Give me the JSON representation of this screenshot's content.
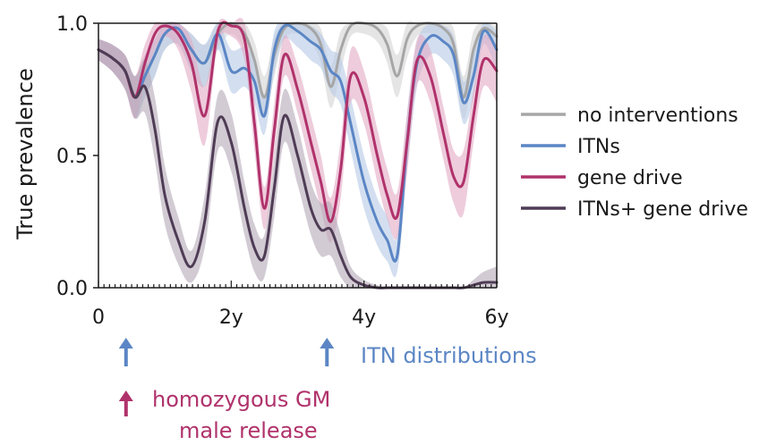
{
  "chart_data": {
    "type": "line",
    "title": "",
    "xlabel": "",
    "ylabel": "True prevalence",
    "xlim": [
      0,
      6
    ],
    "ylim": [
      0,
      1
    ],
    "x_ticks": [
      0,
      2,
      4,
      6
    ],
    "x_tick_labels": [
      "0",
      "2y",
      "4y",
      "6y"
    ],
    "y_ticks": [
      0,
      0.5,
      1
    ],
    "y_tick_labels": [
      "0.0",
      "0.5",
      "1.0"
    ],
    "grid": false,
    "legend_position": "right",
    "series": [
      {
        "name": "no interventions",
        "color": "#a6a6a6",
        "band_color": "#d4d4d4",
        "x": [
          0,
          0.2,
          0.4,
          0.55,
          0.7,
          0.85,
          1.0,
          1.2,
          1.4,
          1.6,
          1.8,
          2.0,
          2.2,
          2.35,
          2.5,
          2.65,
          2.8,
          3.0,
          3.2,
          3.35,
          3.5,
          3.65,
          3.8,
          4.0,
          4.2,
          4.35,
          4.5,
          4.65,
          4.8,
          5.0,
          5.2,
          5.35,
          5.5,
          5.65,
          5.8,
          6.0
        ],
        "values": [
          0.9,
          0.87,
          0.82,
          0.72,
          0.8,
          0.88,
          0.96,
          0.98,
          0.9,
          0.85,
          0.96,
          1.0,
          0.96,
          0.86,
          0.72,
          0.88,
          0.98,
          1.0,
          0.98,
          0.92,
          0.76,
          0.9,
          0.99,
          1.0,
          0.98,
          0.92,
          0.8,
          0.94,
          0.99,
          1.0,
          0.98,
          0.92,
          0.72,
          0.9,
          0.98,
          0.95
        ],
        "lower": [
          0.86,
          0.82,
          0.75,
          0.64,
          0.72,
          0.8,
          0.9,
          0.92,
          0.82,
          0.76,
          0.9,
          0.96,
          0.9,
          0.78,
          0.64,
          0.8,
          0.94,
          0.96,
          0.93,
          0.85,
          0.68,
          0.82,
          0.95,
          0.96,
          0.93,
          0.85,
          0.72,
          0.87,
          0.95,
          0.96,
          0.93,
          0.85,
          0.64,
          0.82,
          0.94,
          0.9
        ],
        "upper": [
          0.94,
          0.92,
          0.88,
          0.8,
          0.88,
          0.94,
          1.0,
          1.0,
          0.96,
          0.92,
          1.0,
          1.0,
          1.0,
          0.93,
          0.8,
          0.95,
          1.0,
          1.0,
          1.0,
          0.98,
          0.84,
          0.97,
          1.0,
          1.0,
          1.0,
          0.98,
          0.88,
          1.0,
          1.0,
          1.0,
          1.0,
          0.98,
          0.8,
          0.97,
          1.0,
          0.99
        ]
      },
      {
        "name": "ITNs",
        "color": "#5b86c5",
        "band_color": "#b5c9e6",
        "x": [
          0,
          0.2,
          0.4,
          0.55,
          0.7,
          0.85,
          1.0,
          1.2,
          1.4,
          1.6,
          1.8,
          2.0,
          2.2,
          2.35,
          2.5,
          2.65,
          2.8,
          3.0,
          3.2,
          3.35,
          3.5,
          3.65,
          3.8,
          4.0,
          4.2,
          4.35,
          4.5,
          4.65,
          4.8,
          5.0,
          5.2,
          5.35,
          5.5,
          5.65,
          5.8,
          6.0
        ],
        "values": [
          0.9,
          0.87,
          0.82,
          0.72,
          0.8,
          0.88,
          0.96,
          0.98,
          0.9,
          0.85,
          0.96,
          0.82,
          0.83,
          0.78,
          0.65,
          0.9,
          0.99,
          0.97,
          0.93,
          0.9,
          0.82,
          0.78,
          0.62,
          0.4,
          0.25,
          0.18,
          0.12,
          0.55,
          0.85,
          0.95,
          0.93,
          0.88,
          0.7,
          0.8,
          0.97,
          0.9
        ],
        "lower": [
          0.86,
          0.82,
          0.75,
          0.64,
          0.72,
          0.8,
          0.9,
          0.92,
          0.82,
          0.76,
          0.9,
          0.74,
          0.76,
          0.7,
          0.58,
          0.82,
          0.94,
          0.91,
          0.86,
          0.83,
          0.74,
          0.69,
          0.52,
          0.3,
          0.16,
          0.1,
          0.06,
          0.44,
          0.76,
          0.88,
          0.86,
          0.8,
          0.62,
          0.72,
          0.92,
          0.82
        ],
        "upper": [
          0.94,
          0.92,
          0.88,
          0.8,
          0.88,
          0.94,
          1.0,
          1.0,
          0.96,
          0.92,
          1.0,
          0.9,
          0.91,
          0.86,
          0.73,
          0.97,
          1.0,
          1.0,
          0.99,
          0.96,
          0.9,
          0.87,
          0.72,
          0.5,
          0.34,
          0.27,
          0.2,
          0.66,
          0.93,
          1.0,
          0.99,
          0.95,
          0.78,
          0.88,
          1.0,
          0.97
        ]
      },
      {
        "name": "gene drive",
        "color": "#b0326b",
        "band_color": "#e3aac4",
        "x": [
          0,
          0.2,
          0.4,
          0.55,
          0.7,
          0.85,
          1.0,
          1.2,
          1.4,
          1.6,
          1.8,
          2.0,
          2.2,
          2.35,
          2.5,
          2.65,
          2.8,
          3.0,
          3.2,
          3.35,
          3.5,
          3.65,
          3.8,
          4.0,
          4.2,
          4.35,
          4.5,
          4.65,
          4.8,
          5.0,
          5.2,
          5.35,
          5.5,
          5.65,
          5.8,
          6.0
        ],
        "values": [
          0.9,
          0.87,
          0.82,
          0.72,
          0.85,
          0.96,
          0.99,
          0.96,
          0.85,
          0.65,
          0.97,
          0.99,
          0.94,
          0.62,
          0.3,
          0.6,
          0.88,
          0.75,
          0.55,
          0.4,
          0.25,
          0.45,
          0.8,
          0.72,
          0.5,
          0.35,
          0.27,
          0.55,
          0.86,
          0.8,
          0.58,
          0.42,
          0.4,
          0.65,
          0.86,
          0.82
        ],
        "lower": [
          0.86,
          0.82,
          0.75,
          0.64,
          0.78,
          0.9,
          0.95,
          0.9,
          0.74,
          0.54,
          0.92,
          0.95,
          0.86,
          0.52,
          0.22,
          0.5,
          0.8,
          0.66,
          0.45,
          0.3,
          0.17,
          0.34,
          0.7,
          0.62,
          0.4,
          0.26,
          0.19,
          0.44,
          0.77,
          0.7,
          0.48,
          0.32,
          0.28,
          0.55,
          0.76,
          0.7
        ],
        "upper": [
          0.94,
          0.92,
          0.88,
          0.8,
          0.92,
          1.0,
          1.0,
          1.0,
          0.94,
          0.76,
          1.0,
          1.0,
          1.0,
          0.72,
          0.38,
          0.7,
          0.95,
          0.84,
          0.65,
          0.5,
          0.34,
          0.56,
          0.9,
          0.82,
          0.6,
          0.45,
          0.36,
          0.66,
          0.94,
          0.9,
          0.68,
          0.52,
          0.52,
          0.75,
          0.95,
          0.92
        ]
      },
      {
        "name": "ITNs+ gene drive",
        "color": "#4f3c55",
        "band_color": "#b4a9b8",
        "x": [
          0,
          0.2,
          0.4,
          0.55,
          0.7,
          0.85,
          1.0,
          1.2,
          1.4,
          1.6,
          1.8,
          2.0,
          2.2,
          2.35,
          2.5,
          2.65,
          2.8,
          3.0,
          3.2,
          3.35,
          3.5,
          3.65,
          3.8,
          4.0,
          4.2,
          4.35,
          4.5,
          4.65,
          4.8,
          5.0,
          5.2,
          5.35,
          5.5,
          5.65,
          5.8,
          6.0
        ],
        "values": [
          0.9,
          0.87,
          0.82,
          0.72,
          0.76,
          0.6,
          0.35,
          0.18,
          0.08,
          0.25,
          0.63,
          0.55,
          0.3,
          0.15,
          0.12,
          0.38,
          0.65,
          0.5,
          0.3,
          0.22,
          0.22,
          0.12,
          0.04,
          0.01,
          0.0,
          0.0,
          0.0,
          0.0,
          0.0,
          0.0,
          0.0,
          0.0,
          0.0,
          0.01,
          0.02,
          0.02
        ],
        "lower": [
          0.86,
          0.82,
          0.75,
          0.64,
          0.66,
          0.48,
          0.24,
          0.09,
          0.02,
          0.15,
          0.52,
          0.44,
          0.2,
          0.06,
          0.04,
          0.27,
          0.55,
          0.39,
          0.2,
          0.12,
          0.12,
          0.04,
          0.0,
          0.0,
          0.0,
          0.0,
          0.0,
          0.0,
          0.0,
          0.0,
          0.0,
          0.0,
          0.0,
          0.0,
          0.0,
          0.0
        ],
        "upper": [
          0.94,
          0.92,
          0.88,
          0.8,
          0.86,
          0.72,
          0.46,
          0.27,
          0.14,
          0.35,
          0.73,
          0.66,
          0.4,
          0.24,
          0.2,
          0.49,
          0.75,
          0.61,
          0.4,
          0.32,
          0.32,
          0.2,
          0.08,
          0.03,
          0.01,
          0.0,
          0.0,
          0.0,
          0.0,
          0.0,
          0.0,
          0.0,
          0.0,
          0.03,
          0.06,
          0.08
        ]
      }
    ],
    "annotations": [
      {
        "text": "homozygous GM",
        "color": "#b0326b",
        "arrow_x": 0.55
      },
      {
        "text": "male release",
        "color": "#b0326b"
      },
      {
        "text": "ITN distributions",
        "color": "#5b86c5",
        "arrow_x": 3.55,
        "blue_arrow_x": [
          0.55,
          3.55
        ]
      }
    ]
  }
}
